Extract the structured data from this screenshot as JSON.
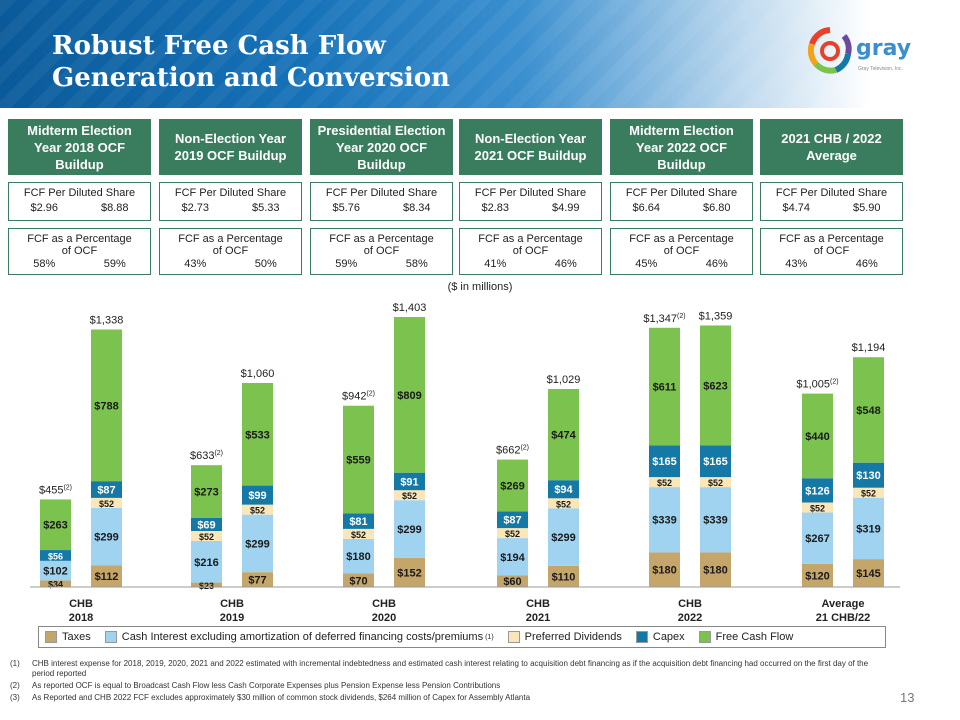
{
  "title_line1": "Robust Free Cash Flow",
  "title_line2": "Generation and Conversion",
  "logo_text": "gray",
  "logo_tagline": "Gray Television, Inc.",
  "units_note": "($ in millions)",
  "columns": [
    {
      "head": "Midterm Election Year 2018 OCF Buildup",
      "fcf_share_label": "FCF Per Diluted Share",
      "fcf_share_vals": [
        "$2.96",
        "$8.88"
      ],
      "fcf_pct_label": "FCF as a Percentage of OCF",
      "fcf_pct_vals": [
        "58%",
        "59%"
      ]
    },
    {
      "head": "Non-Election Year 2019 OCF Buildup",
      "fcf_share_label": "FCF Per Diluted Share",
      "fcf_share_vals": [
        "$2.73",
        "$5.33"
      ],
      "fcf_pct_label": "FCF as a Percentage of OCF",
      "fcf_pct_vals": [
        "43%",
        "50%"
      ]
    },
    {
      "head": "Presidential Election Year 2020 OCF Buildup",
      "fcf_share_label": "FCF Per Diluted Share",
      "fcf_share_vals": [
        "$5.76",
        "$8.34"
      ],
      "fcf_pct_label": "FCF as a Percentage of OCF",
      "fcf_pct_vals": [
        "59%",
        "58%"
      ]
    },
    {
      "head": "Non-Election Year 2021 OCF Buildup",
      "fcf_share_label": "FCF Per Diluted Share",
      "fcf_share_vals": [
        "$2.83",
        "$4.99"
      ],
      "fcf_pct_label": "FCF as a Percentage of OCF",
      "fcf_pct_vals": [
        "41%",
        "46%"
      ]
    },
    {
      "head": "Midterm Election Year 2022 OCF Buildup",
      "fcf_share_label": "FCF Per Diluted Share",
      "fcf_share_vals": [
        "$6.64",
        "$6.80"
      ],
      "fcf_pct_label": "FCF as a Percentage of OCF",
      "fcf_pct_vals": [
        "45%",
        "46%"
      ]
    },
    {
      "head": "2021 CHB / 2022 Average",
      "fcf_share_label": "FCF Per Diluted Share",
      "fcf_share_vals": [
        "$4.74",
        "$5.90"
      ],
      "fcf_pct_label": "FCF as a Percentage of OCF",
      "fcf_pct_vals": [
        "43%",
        "46%"
      ]
    }
  ],
  "chart_data": {
    "type": "bar",
    "stacked": true,
    "groups": [
      {
        "label_top": "CHB",
        "label_bottom_left": "2018",
        "bars": [
          {
            "segments": [
              34,
              102,
              0,
              56,
              263
            ],
            "total_label": "$455",
            "note": "(2)"
          },
          {
            "segments": [
              112,
              299,
              52,
              87,
              788
            ],
            "total_label": "$1,338",
            "note": ""
          }
        ]
      },
      {
        "label_top": "CHB",
        "label_bottom_left": "2019",
        "bars": [
          {
            "segments": [
              23,
              216,
              52,
              69,
              273
            ],
            "total_label": "$633",
            "note": "(2)"
          },
          {
            "segments": [
              77,
              299,
              52,
              99,
              533
            ],
            "total_label": "$1,060",
            "note": ""
          }
        ]
      },
      {
        "label_top": "CHB",
        "label_bottom_left": "2020",
        "bars": [
          {
            "segments": [
              70,
              180,
              52,
              81,
              559
            ],
            "total_label": "$942",
            "note": "(2)"
          },
          {
            "segments": [
              152,
              299,
              52,
              91,
              809
            ],
            "total_label": "$1,403",
            "note": ""
          }
        ]
      },
      {
        "label_top": "CHB",
        "label_bottom_left": "2021",
        "bars": [
          {
            "segments": [
              60,
              194,
              52,
              87,
              269
            ],
            "total_label": "$662",
            "note": "(2)"
          },
          {
            "segments": [
              110,
              299,
              52,
              94,
              474
            ],
            "total_label": "$1,029",
            "note": ""
          }
        ]
      },
      {
        "label_top": "CHB",
        "label_bottom_left": "2022",
        "bars": [
          {
            "segments": [
              180,
              339,
              52,
              165,
              611
            ],
            "total_label": "$1,347",
            "note": "(2)"
          },
          {
            "segments": [
              180,
              339,
              52,
              165,
              623
            ],
            "total_label": "$1,359",
            "note": ""
          }
        ]
      },
      {
        "label_top": "Average",
        "label_bottom_left": "21 CHB/22",
        "bars": [
          {
            "segments": [
              120,
              267,
              52,
              126,
              440
            ],
            "total_label": "$1,005",
            "note": "(2)"
          },
          {
            "segments": [
              145,
              319,
              52,
              130,
              548
            ],
            "total_label": "$1,194",
            "note": ""
          }
        ]
      }
    ],
    "series": [
      {
        "name": "Taxes",
        "color": "#c4a56a"
      },
      {
        "name": "Cash Interest excluding amortization of deferred financing costs/premiums",
        "note": "(1)",
        "color": "#9fd3f0"
      },
      {
        "name": "Preferred Dividends",
        "color": "#fbe6b7"
      },
      {
        "name": "Capex",
        "color": "#1479a6"
      },
      {
        "name": "Free Cash Flow",
        "color": "#7cc24f"
      }
    ],
    "ylim": [
      0,
      1403
    ]
  },
  "footnotes": [
    {
      "num": "(1)",
      "text": "CHB interest expense for 2018, 2019, 2020, 2021 and 2022 estimated with incremental indebtedness and estimated cash interest relating to acquisition debt financing as if the acquisition debt financing had occurred on the first day of the period reported"
    },
    {
      "num": "(2)",
      "text": "As reported OCF is equal to Broadcast Cash Flow less Cash Corporate Expenses plus Pension Expense less Pension Contributions"
    },
    {
      "num": "(3)",
      "text": "As Reported and CHB 2022 FCF excludes approximately $30 million of common stock dividends, $264 million of Capex for Assembly Atlanta"
    }
  ],
  "page_number": "13"
}
